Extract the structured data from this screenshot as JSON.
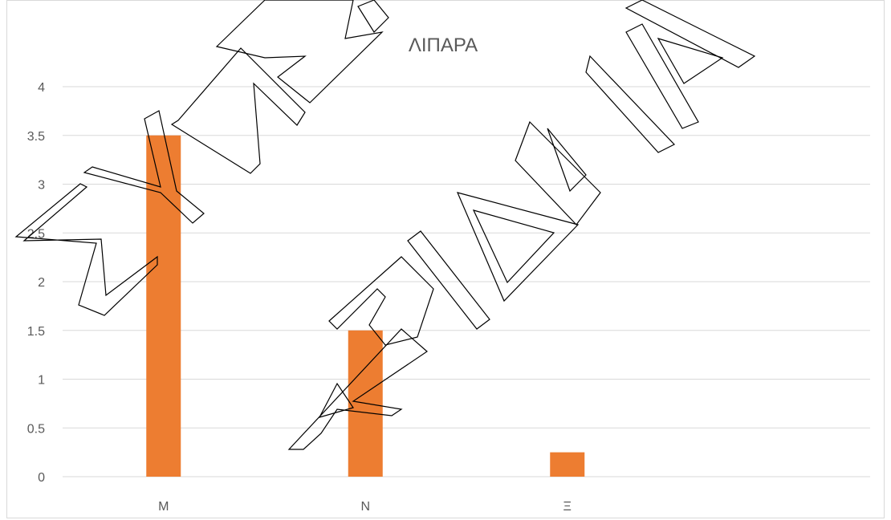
{
  "chart_data": {
    "type": "bar",
    "title": "ΛΙΠΑΡΑ",
    "categories": [
      "Μ",
      "Ν",
      "Ξ",
      ""
    ],
    "values": [
      3.5,
      1.5,
      0.25,
      null
    ],
    "y_ticks": [
      "0",
      "0.5",
      "1",
      "1.5",
      "2",
      "2.5",
      "3",
      "3.5",
      "4"
    ],
    "ylim": [
      0,
      4
    ],
    "grid": true,
    "bar_color": "#ed7d31",
    "gridline_color": "#d9d9d9"
  },
  "watermark": {
    "lines": [
      "ΣΥΝΕΙ",
      "ΑΡΙΑΔΝΙΑ"
    ],
    "color": "#000000"
  }
}
